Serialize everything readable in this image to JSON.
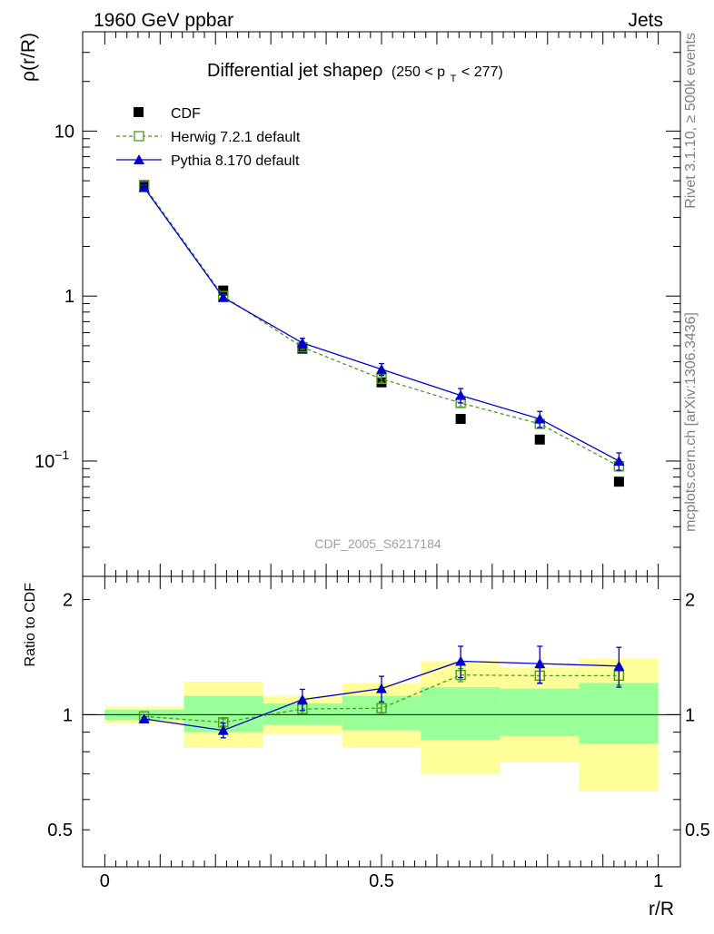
{
  "header": {
    "left": "1960 GeV ppbar",
    "right": "Jets"
  },
  "side_labels": {
    "rivet": "Rivet 3.1.10, ≥ 500k events",
    "mcplots": "mcplots.cern.ch [arXiv:1306.3436]"
  },
  "analysis_id": "CDF_2005_S6217184",
  "chart_data": [
    {
      "type": "scatter",
      "title": "Differential jet shapeρ",
      "title_range": "(250 < p",
      "title_sub": "T",
      "title_range_end": " < 277)",
      "xlabel": "",
      "ylabel": "ρ(r/R)",
      "xlim": [
        -0.04,
        1.04
      ],
      "ylim": [
        0.02,
        40
      ],
      "yscale": "log",
      "yticks": [
        {
          "value": 10,
          "label": "10"
        },
        {
          "value": 1,
          "label": "1"
        },
        {
          "value": 0.1,
          "label": "10",
          "exp": "−1"
        }
      ],
      "legend_position": "top-left",
      "x": [
        0.071,
        0.214,
        0.357,
        0.5,
        0.643,
        0.786,
        0.929
      ],
      "series": [
        {
          "name": "CDF",
          "color": "#000000",
          "marker": "filled-square",
          "values": [
            4.7,
            1.08,
            0.48,
            0.3,
            0.18,
            0.135,
            0.075
          ]
        },
        {
          "name": "Herwig 7.2.1 default",
          "color": "#4a9a1e",
          "marker": "open-square",
          "line": "dashed",
          "values": [
            4.65,
            1.0,
            0.49,
            0.315,
            0.225,
            0.168,
            0.093
          ],
          "err": [
            0.05,
            0.02,
            0.015,
            0.015,
            0.012,
            0.01,
            0.006
          ]
        },
        {
          "name": "Pythia 8.170 default",
          "color": "#0000cc",
          "marker": "filled-triangle",
          "line": "solid",
          "values": [
            4.55,
            0.98,
            0.52,
            0.36,
            0.25,
            0.18,
            0.1
          ],
          "err": [
            0.06,
            0.03,
            0.035,
            0.03,
            0.025,
            0.02,
            0.012
          ]
        }
      ]
    },
    {
      "type": "scatter",
      "title": "",
      "xlabel": "r/R",
      "ylabel": "Ratio to CDF",
      "xlim": [
        -0.04,
        1.04
      ],
      "ylim": [
        0.4,
        2.3
      ],
      "yscale": "log",
      "yticks": [
        {
          "value": 2,
          "label": "2"
        },
        {
          "value": 1,
          "label": "1"
        },
        {
          "value": 0.5,
          "label": "0.5"
        }
      ],
      "xticks": [
        {
          "value": 0,
          "label": "0"
        },
        {
          "value": 0.5,
          "label": "0.5"
        },
        {
          "value": 1,
          "label": "1"
        }
      ],
      "reference_line": 1,
      "bins": [
        {
          "lo": 0.0,
          "hi": 0.143,
          "green": [
            0.97,
            1.03
          ],
          "yellow": [
            0.95,
            1.05
          ]
        },
        {
          "lo": 0.143,
          "hi": 0.286,
          "green": [
            0.9,
            1.12
          ],
          "yellow": [
            0.82,
            1.22
          ]
        },
        {
          "lo": 0.286,
          "hi": 0.429,
          "green": [
            0.94,
            1.07
          ],
          "yellow": [
            0.89,
            1.12
          ]
        },
        {
          "lo": 0.429,
          "hi": 0.571,
          "green": [
            0.91,
            1.12
          ],
          "yellow": [
            0.82,
            1.21
          ]
        },
        {
          "lo": 0.571,
          "hi": 0.714,
          "green": [
            0.86,
            1.18
          ],
          "yellow": [
            0.7,
            1.38
          ]
        },
        {
          "lo": 0.714,
          "hi": 0.857,
          "green": [
            0.88,
            1.17
          ],
          "yellow": [
            0.75,
            1.33
          ]
        },
        {
          "lo": 0.857,
          "hi": 1.0,
          "green": [
            0.84,
            1.21
          ],
          "yellow": [
            0.63,
            1.4
          ]
        }
      ],
      "series": [
        {
          "name": "Herwig 7.2.1 default",
          "color": "#4a9a1e",
          "marker": "open-square",
          "line": "dashed",
          "values": [
            0.99,
            0.955,
            1.035,
            1.04,
            1.27,
            1.265,
            1.265
          ],
          "err": [
            0.01,
            0.02,
            0.03,
            0.03,
            0.05,
            0.06,
            0.07
          ]
        },
        {
          "name": "Pythia 8.170 default",
          "color": "#0000cc",
          "marker": "filled-triangle",
          "line": "solid",
          "values": [
            0.975,
            0.91,
            1.095,
            1.17,
            1.38,
            1.36,
            1.34
          ],
          "err": [
            0.01,
            0.04,
            0.07,
            0.09,
            0.13,
            0.15,
            0.16
          ]
        }
      ]
    }
  ]
}
